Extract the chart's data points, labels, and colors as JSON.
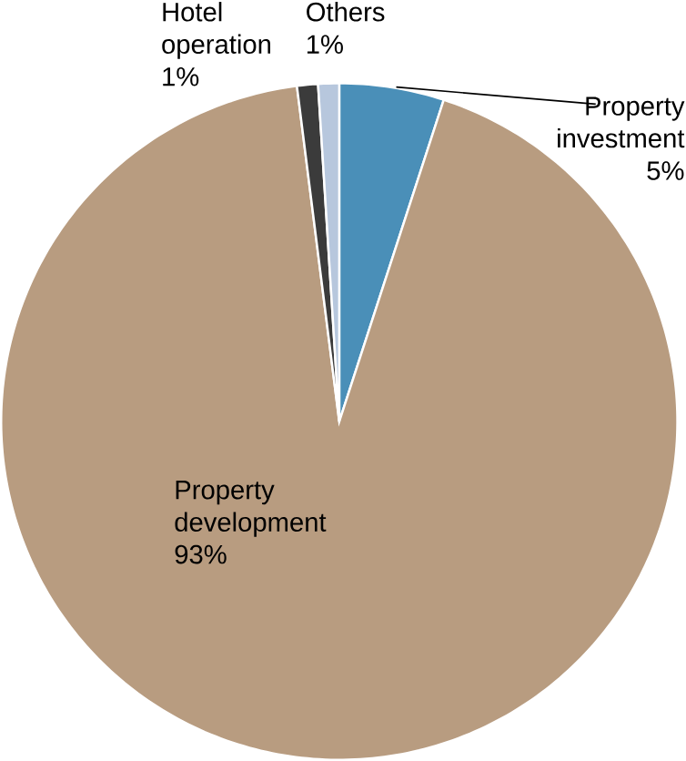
{
  "chart_data": {
    "type": "pie",
    "categories": [
      "Property investment",
      "Property development",
      "Hotel operation",
      "Others"
    ],
    "values": [
      5,
      93,
      1,
      1
    ],
    "value_labels": [
      "5%",
      "93%",
      "1%",
      "1%"
    ],
    "colors": [
      "#4a8fb8",
      "#b89c80",
      "#3b3b3b",
      "#b7c7dd"
    ]
  }
}
